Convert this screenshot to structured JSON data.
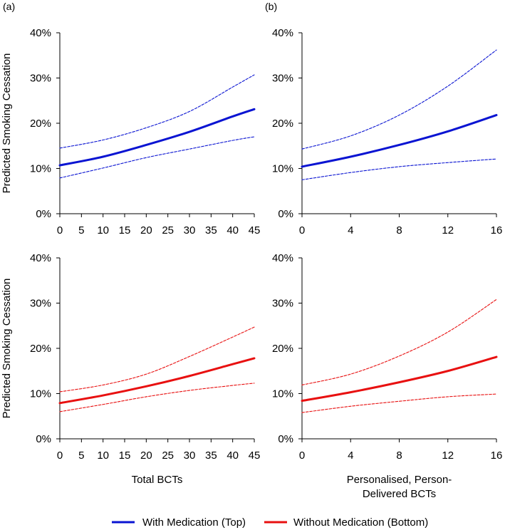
{
  "colors": {
    "with_medication": "#0a14d2",
    "without_medication": "#e81010",
    "axis": "#000000"
  },
  "legend": [
    {
      "key": "with",
      "label": "With Medication (Top)",
      "color": "#0a14d2"
    },
    {
      "key": "without",
      "label": "Without Medication (Bottom)",
      "color": "#e81010"
    }
  ],
  "chart_data": [
    {
      "id": "a-top",
      "panel_label": "(a)",
      "type": "line",
      "ylabel": "Predicted Smoking Cessation",
      "xlabel": "",
      "xlim": [
        0,
        45
      ],
      "ylim": [
        0,
        40
      ],
      "x_ticks": [
        "0",
        "5",
        "10",
        "15",
        "20",
        "25",
        "30",
        "35",
        "40",
        "45"
      ],
      "y_ticks": [
        "0%",
        "10%",
        "20%",
        "30%",
        "40%"
      ],
      "x": [
        0,
        10,
        20,
        30,
        40,
        45
      ],
      "series": [
        {
          "name": "With Medication",
          "style": "solid",
          "color": "#0a14d2",
          "values": [
            10.7,
            12.6,
            15.2,
            18.1,
            21.5,
            23.1
          ]
        },
        {
          "name": "Upper CI",
          "style": "dashed",
          "color": "#0a14d2",
          "values": [
            14.5,
            16.3,
            19.0,
            22.6,
            28.0,
            30.7
          ]
        },
        {
          "name": "Lower CI",
          "style": "dashed",
          "color": "#0a14d2",
          "values": [
            7.9,
            10.1,
            12.4,
            14.3,
            16.2,
            17.0
          ]
        }
      ]
    },
    {
      "id": "b-top",
      "panel_label": "(b)",
      "type": "line",
      "ylabel": "",
      "xlabel": "",
      "xlim": [
        0,
        16
      ],
      "ylim": [
        0,
        40
      ],
      "x_ticks": [
        "0",
        "4",
        "8",
        "12",
        "16"
      ],
      "y_ticks": [
        "0%",
        "10%",
        "20%",
        "30%",
        "40%"
      ],
      "x": [
        0,
        4,
        8,
        12,
        16
      ],
      "series": [
        {
          "name": "With Medication",
          "style": "solid",
          "color": "#0a14d2",
          "values": [
            10.4,
            12.6,
            15.2,
            18.2,
            21.8
          ]
        },
        {
          "name": "Upper CI",
          "style": "dashed",
          "color": "#0a14d2",
          "values": [
            14.3,
            17.2,
            21.8,
            28.2,
            36.2
          ]
        },
        {
          "name": "Lower CI",
          "style": "dashed",
          "color": "#0a14d2",
          "values": [
            7.5,
            9.1,
            10.4,
            11.3,
            12.1
          ]
        }
      ]
    },
    {
      "id": "a-bottom",
      "panel_label": "",
      "type": "line",
      "ylabel": "Predicted Smoking Cessation",
      "xlabel": "Total BCTs",
      "xlim": [
        0,
        45
      ],
      "ylim": [
        0,
        40
      ],
      "x_ticks": [
        "0",
        "5",
        "10",
        "15",
        "20",
        "25",
        "30",
        "35",
        "40",
        "45"
      ],
      "y_ticks": [
        "0%",
        "10%",
        "20%",
        "30%",
        "40%"
      ],
      "x": [
        0,
        10,
        20,
        30,
        40,
        45
      ],
      "series": [
        {
          "name": "Without Medication",
          "style": "solid",
          "color": "#e81010",
          "values": [
            7.9,
            9.6,
            11.6,
            13.9,
            16.5,
            17.8
          ]
        },
        {
          "name": "Upper CI",
          "style": "dashed",
          "color": "#e81010",
          "values": [
            10.4,
            11.9,
            14.3,
            18.2,
            22.5,
            24.7
          ]
        },
        {
          "name": "Lower CI",
          "style": "dashed",
          "color": "#e81010",
          "values": [
            6.0,
            7.6,
            9.3,
            10.7,
            11.8,
            12.3
          ]
        }
      ]
    },
    {
      "id": "b-bottom",
      "panel_label": "",
      "type": "line",
      "ylabel": "",
      "xlabel": "Personalised, Person-\nDelivered BCTs",
      "xlim": [
        0,
        16
      ],
      "ylim": [
        0,
        40
      ],
      "x_ticks": [
        "0",
        "4",
        "8",
        "12",
        "16"
      ],
      "y_ticks": [
        "0%",
        "10%",
        "20%",
        "30%",
        "40%"
      ],
      "x": [
        0,
        4,
        8,
        12,
        16
      ],
      "series": [
        {
          "name": "Without Medication",
          "style": "solid",
          "color": "#e81010",
          "values": [
            8.4,
            10.3,
            12.5,
            15.0,
            18.1
          ]
        },
        {
          "name": "Upper CI",
          "style": "dashed",
          "color": "#e81010",
          "values": [
            11.9,
            14.3,
            18.3,
            23.6,
            30.8
          ]
        },
        {
          "name": "Lower CI",
          "style": "dashed",
          "color": "#e81010",
          "values": [
            5.8,
            7.2,
            8.3,
            9.3,
            9.9
          ]
        }
      ]
    }
  ]
}
